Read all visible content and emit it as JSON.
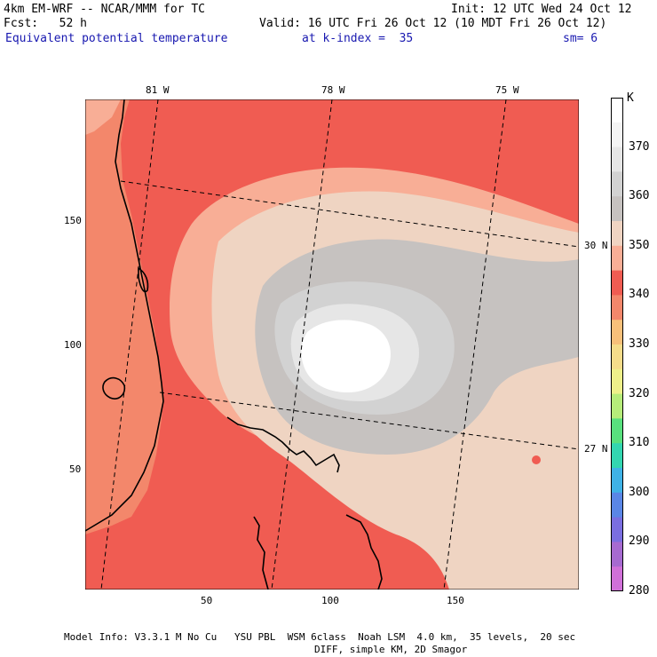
{
  "header": {
    "model": "4km EM-WRF -- NCAR/MMM for TC",
    "init": "Init: 12 UTC Wed 24 Oct 12",
    "fcst": "Fcst:   52 h",
    "valid": "Valid: 16 UTC Fri 26 Oct 12 (10 MDT Fri 26 Oct 12)",
    "field": "Equivalent potential temperature",
    "level": "at k-index =  35",
    "smoothing": "sm= 6"
  },
  "axes": {
    "x_ticks": [
      "50",
      "100",
      "150"
    ],
    "y_ticks": [
      "150",
      "100",
      "50"
    ],
    "lon_labels": [
      "81 W",
      "78 W",
      "75 W"
    ],
    "lat_labels": [
      "30 N",
      "27 N"
    ]
  },
  "colorbar": {
    "unit": "K",
    "levels": [
      "370",
      "360",
      "350",
      "340",
      "330",
      "320",
      "310",
      "300",
      "290",
      "280"
    ],
    "colors": [
      "#ffffff",
      "#f4f4f4",
      "#e6e6e6",
      "#d2d2d2",
      "#c6c2c0",
      "#efd4c2",
      "#f8ae96",
      "#f05c52",
      "#f3876b",
      "#f7c07a",
      "#f5dc8a",
      "#eef08a",
      "#b6ec7a",
      "#58e07e",
      "#33d6b0",
      "#3fb2e6",
      "#5a86e6",
      "#7a6ee0",
      "#a66ad0",
      "#d070d8"
    ]
  },
  "map_colors": {
    "ocean_warm": "#f05c52",
    "land_warm": "#f3876b",
    "band_350": "#f8ae96",
    "band_355": "#efd4c2",
    "band_360": "#c6c2c0",
    "band_365": "#d2d2d2",
    "band_370": "#e6e6e6",
    "core": "#ffffff"
  },
  "footer": {
    "line1": "Model Info: V3.3.1 M No Cu   YSU PBL  WSM 6class  Noah LSM  4.0 km,  35 levels,  20 sec",
    "line2": "DIFF, simple KM, 2D Smagor"
  }
}
